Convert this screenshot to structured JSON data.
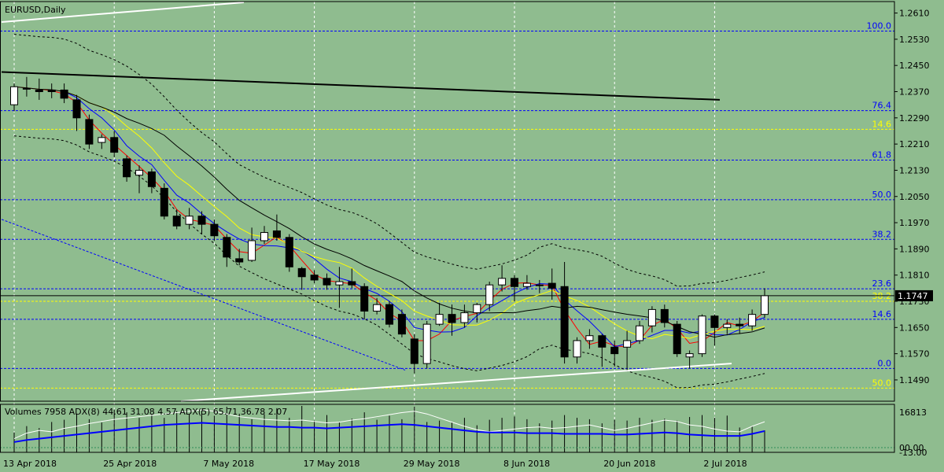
{
  "colors": {
    "background": "#8fbc8f",
    "bull_body": "#ffffff",
    "bear_body": "#000000",
    "outline": "#000000",
    "fib_line": "#0000ff",
    "fib_text": "#0000ff",
    "fib2_line": "#ffff00",
    "fib2_text": "#ffff00",
    "ma_red": "#ff0000",
    "ma_blue": "#0000ff",
    "ma_yellow": "#ffff00",
    "ma_black": "#000000",
    "trend_white": "#ffffff",
    "grid": "#ffffff",
    "vol_white": "#ffffff",
    "vol_blue": "#0000ff"
  },
  "chart_data": {
    "type": "candlestick",
    "title": "EURUSD,Daily",
    "y_axis": {
      "ticks": [
        "1.2610",
        "1.2530",
        "1.2450",
        "1.2370",
        "1.2290",
        "1.2210",
        "1.2130",
        "1.2050",
        "1.1970",
        "1.1890",
        "1.1810",
        "1.1730",
        "1.1650",
        "1.1570",
        "1.1490"
      ],
      "range": [
        1.1425,
        1.2645
      ]
    },
    "x_axis": {
      "labels": [
        "13 Apr 2018",
        "25 Apr 2018",
        "7 May 2018",
        "17 May 2018",
        "29 May 2018",
        "8 Jun 2018",
        "20 Jun 2018",
        "2 Jul 2018"
      ],
      "label_indices": [
        0,
        8,
        16,
        24,
        32,
        40,
        48,
        56
      ]
    },
    "current_price": "1.1747",
    "fib_levels": [
      {
        "label": "100.0",
        "value": 1.2555
      },
      {
        "label": "76.4",
        "value": 1.2312
      },
      {
        "label": "61.8",
        "value": 1.2161
      },
      {
        "label": "50.0",
        "value": 1.204
      },
      {
        "label": "38.2",
        "value": 1.1919
      },
      {
        "label": "23.6",
        "value": 1.1768
      },
      {
        "label": "14.6",
        "value": 1.1675
      },
      {
        "label": "0.0",
        "value": 1.1525
      }
    ],
    "fib_levels_2": [
      {
        "label": "14.6",
        "value": 1.2255
      },
      {
        "label": "38.2",
        "value": 1.173
      },
      {
        "label": "50.0",
        "value": 1.1465
      }
    ],
    "candles": [
      {
        "d": "2018-04-13",
        "o": 1.233,
        "h": 1.2395,
        "l": 1.231,
        "c": 1.2385
      },
      {
        "d": "2018-04-16",
        "o": 1.238,
        "h": 1.2415,
        "l": 1.2355,
        "c": 1.2378
      },
      {
        "d": "2018-04-17",
        "o": 1.2375,
        "h": 1.241,
        "l": 1.2345,
        "c": 1.237
      },
      {
        "d": "2018-04-18",
        "o": 1.2375,
        "h": 1.2395,
        "l": 1.235,
        "c": 1.237
      },
      {
        "d": "2018-04-19",
        "o": 1.2375,
        "h": 1.2395,
        "l": 1.2335,
        "c": 1.235
      },
      {
        "d": "2018-04-20",
        "o": 1.2345,
        "h": 1.236,
        "l": 1.225,
        "c": 1.229
      },
      {
        "d": "2018-04-23",
        "o": 1.2285,
        "h": 1.23,
        "l": 1.2195,
        "c": 1.221
      },
      {
        "d": "2018-04-24",
        "o": 1.2215,
        "h": 1.224,
        "l": 1.2195,
        "c": 1.223
      },
      {
        "d": "2018-04-25",
        "o": 1.223,
        "h": 1.225,
        "l": 1.217,
        "c": 1.2185
      },
      {
        "d": "2018-04-26",
        "o": 1.2165,
        "h": 1.2175,
        "l": 1.2095,
        "c": 1.211
      },
      {
        "d": "2018-04-27",
        "o": 1.2115,
        "h": 1.2145,
        "l": 1.206,
        "c": 1.213
      },
      {
        "d": "2018-04-30",
        "o": 1.2125,
        "h": 1.2135,
        "l": 1.206,
        "c": 1.208
      },
      {
        "d": "2018-05-01",
        "o": 1.2075,
        "h": 1.209,
        "l": 1.198,
        "c": 1.199
      },
      {
        "d": "2018-05-02",
        "o": 1.199,
        "h": 1.201,
        "l": 1.195,
        "c": 1.196
      },
      {
        "d": "2018-05-03",
        "o": 1.1965,
        "h": 1.2015,
        "l": 1.195,
        "c": 1.199
      },
      {
        "d": "2018-05-04",
        "o": 1.199,
        "h": 1.2005,
        "l": 1.1935,
        "c": 1.1965
      },
      {
        "d": "2018-05-07",
        "o": 1.1965,
        "h": 1.198,
        "l": 1.1915,
        "c": 1.193
      },
      {
        "d": "2018-05-08",
        "o": 1.1925,
        "h": 1.1935,
        "l": 1.1835,
        "c": 1.1865
      },
      {
        "d": "2018-05-09",
        "o": 1.186,
        "h": 1.189,
        "l": 1.184,
        "c": 1.185
      },
      {
        "d": "2018-05-10",
        "o": 1.1855,
        "h": 1.1955,
        "l": 1.185,
        "c": 1.1915
      },
      {
        "d": "2018-05-11",
        "o": 1.1915,
        "h": 1.196,
        "l": 1.1905,
        "c": 1.194
      },
      {
        "d": "2018-05-14",
        "o": 1.1945,
        "h": 1.1995,
        "l": 1.1915,
        "c": 1.1925
      },
      {
        "d": "2018-05-15",
        "o": 1.1925,
        "h": 1.1935,
        "l": 1.182,
        "c": 1.1835
      },
      {
        "d": "2018-05-16",
        "o": 1.183,
        "h": 1.1835,
        "l": 1.1765,
        "c": 1.1805
      },
      {
        "d": "2018-05-17",
        "o": 1.181,
        "h": 1.1825,
        "l": 1.1785,
        "c": 1.1795
      },
      {
        "d": "2018-05-18",
        "o": 1.18,
        "h": 1.1815,
        "l": 1.1765,
        "c": 1.178
      },
      {
        "d": "2018-05-21",
        "o": 1.178,
        "h": 1.1835,
        "l": 1.171,
        "c": 1.179
      },
      {
        "d": "2018-05-22",
        "o": 1.179,
        "h": 1.183,
        "l": 1.177,
        "c": 1.178
      },
      {
        "d": "2018-05-23",
        "o": 1.1775,
        "h": 1.1785,
        "l": 1.1675,
        "c": 1.17
      },
      {
        "d": "2018-05-24",
        "o": 1.17,
        "h": 1.174,
        "l": 1.169,
        "c": 1.172
      },
      {
        "d": "2018-05-25",
        "o": 1.172,
        "h": 1.173,
        "l": 1.165,
        "c": 1.166
      },
      {
        "d": "2018-05-28",
        "o": 1.169,
        "h": 1.1705,
        "l": 1.162,
        "c": 1.163
      },
      {
        "d": "2018-05-29",
        "o": 1.1615,
        "h": 1.163,
        "l": 1.151,
        "c": 1.154
      },
      {
        "d": "2018-05-30",
        "o": 1.154,
        "h": 1.167,
        "l": 1.1525,
        "c": 1.166
      },
      {
        "d": "2018-05-31",
        "o": 1.166,
        "h": 1.1725,
        "l": 1.1655,
        "c": 1.169
      },
      {
        "d": "2018-06-01",
        "o": 1.169,
        "h": 1.172,
        "l": 1.1625,
        "c": 1.1665
      },
      {
        "d": "2018-06-04",
        "o": 1.1665,
        "h": 1.172,
        "l": 1.165,
        "c": 1.1695
      },
      {
        "d": "2018-06-05",
        "o": 1.1695,
        "h": 1.1725,
        "l": 1.1665,
        "c": 1.172
      },
      {
        "d": "2018-06-06",
        "o": 1.172,
        "h": 1.179,
        "l": 1.17,
        "c": 1.178
      },
      {
        "d": "2018-06-07",
        "o": 1.178,
        "h": 1.184,
        "l": 1.176,
        "c": 1.18
      },
      {
        "d": "2018-06-08",
        "o": 1.18,
        "h": 1.181,
        "l": 1.173,
        "c": 1.1775
      },
      {
        "d": "2018-06-11",
        "o": 1.1775,
        "h": 1.181,
        "l": 1.1765,
        "c": 1.1785
      },
      {
        "d": "2018-06-12",
        "o": 1.178,
        "h": 1.1795,
        "l": 1.1755,
        "c": 1.178
      },
      {
        "d": "2018-06-13",
        "o": 1.1785,
        "h": 1.183,
        "l": 1.1735,
        "c": 1.177
      },
      {
        "d": "2018-06-14",
        "o": 1.1775,
        "h": 1.185,
        "l": 1.154,
        "c": 1.156
      },
      {
        "d": "2018-06-15",
        "o": 1.156,
        "h": 1.162,
        "l": 1.154,
        "c": 1.161
      },
      {
        "d": "2018-06-18",
        "o": 1.161,
        "h": 1.1645,
        "l": 1.1585,
        "c": 1.1625
      },
      {
        "d": "2018-06-19",
        "o": 1.1625,
        "h": 1.163,
        "l": 1.153,
        "c": 1.159
      },
      {
        "d": "2018-06-20",
        "o": 1.159,
        "h": 1.161,
        "l": 1.153,
        "c": 1.157
      },
      {
        "d": "2018-06-21",
        "o": 1.159,
        "h": 1.164,
        "l": 1.152,
        "c": 1.161
      },
      {
        "d": "2018-06-22",
        "o": 1.161,
        "h": 1.167,
        "l": 1.16,
        "c": 1.1655
      },
      {
        "d": "2018-06-25",
        "o": 1.1655,
        "h": 1.1715,
        "l": 1.1635,
        "c": 1.1705
      },
      {
        "d": "2018-06-26",
        "o": 1.1705,
        "h": 1.172,
        "l": 1.165,
        "c": 1.1665
      },
      {
        "d": "2018-06-27",
        "o": 1.166,
        "h": 1.167,
        "l": 1.156,
        "c": 1.157
      },
      {
        "d": "2018-06-28",
        "o": 1.156,
        "h": 1.158,
        "l": 1.1525,
        "c": 1.157
      },
      {
        "d": "2018-06-29",
        "o": 1.157,
        "h": 1.169,
        "l": 1.156,
        "c": 1.1685
      },
      {
        "d": "2018-07-02",
        "o": 1.1685,
        "h": 1.169,
        "l": 1.1595,
        "c": 1.165
      },
      {
        "d": "2018-07-03",
        "o": 1.165,
        "h": 1.1675,
        "l": 1.163,
        "c": 1.166
      },
      {
        "d": "2018-07-04",
        "o": 1.166,
        "h": 1.168,
        "l": 1.163,
        "c": 1.1655
      },
      {
        "d": "2018-07-05",
        "o": 1.1655,
        "h": 1.1705,
        "l": 1.164,
        "c": 1.169
      },
      {
        "d": "2018-07-06",
        "o": 1.169,
        "h": 1.177,
        "l": 1.168,
        "c": 1.1747
      }
    ],
    "volume_panel": {
      "label": "Volumes 7958 ADX(8) 44.61 31.08 4.57 ADX(5) 65.71 36.78 2.07",
      "ticks": [
        "16813",
        "00.00",
        "-13.00"
      ],
      "range": [
        0,
        16813
      ],
      "volumes": [
        7200,
        9500,
        8800,
        11000,
        11800,
        14000,
        12000,
        10800,
        15500,
        14500,
        12500,
        13800,
        12500,
        15000,
        13800,
        15800,
        13200,
        16500,
        14000,
        12000,
        13800,
        16000,
        12500,
        16813,
        11500,
        13500,
        11000,
        12200,
        14500,
        11800,
        13300,
        12000,
        16500,
        11000,
        11500,
        10800,
        12500,
        9800,
        11800,
        12500,
        13000,
        12000,
        10500,
        11500,
        13500,
        12500,
        12000,
        10500,
        11800,
        11500,
        12500,
        11800,
        12200,
        11500,
        12800,
        13500,
        12500,
        13300,
        9000,
        9500,
        7958
      ],
      "adx_white": [
        20,
        28,
        32,
        30,
        35,
        38,
        42,
        45,
        48,
        50,
        52,
        54,
        56,
        58,
        60,
        62,
        60,
        56,
        52,
        50,
        48,
        47,
        46,
        47,
        45,
        43,
        44,
        47,
        49,
        52,
        55,
        58,
        60,
        56,
        50,
        44,
        38,
        33,
        30,
        32,
        34,
        36,
        37,
        35,
        36,
        38,
        40,
        36,
        32,
        35,
        39,
        43,
        47,
        45,
        40,
        38,
        34,
        31,
        30,
        38,
        44.61
      ],
      "adx_blue": [
        15,
        18,
        20,
        22,
        24,
        26,
        28,
        30,
        32,
        34,
        36,
        38,
        40,
        41,
        42,
        43,
        42,
        41,
        40,
        39,
        38,
        37,
        37,
        36,
        36,
        35,
        36,
        37,
        38,
        39,
        40,
        41,
        40,
        38,
        36,
        34,
        32,
        30,
        29,
        29,
        29,
        28,
        28,
        28,
        27,
        27,
        27,
        27,
        26,
        26,
        27,
        28,
        29,
        28,
        26,
        25,
        24,
        24,
        24,
        27,
        31.08
      ]
    },
    "moving_averages": [
      {
        "color": "ma_red",
        "period": 3
      },
      {
        "color": "ma_blue",
        "period": 5
      },
      {
        "color": "ma_yellow",
        "period": 8
      },
      {
        "color": "ma_black",
        "period": 13
      }
    ]
  }
}
